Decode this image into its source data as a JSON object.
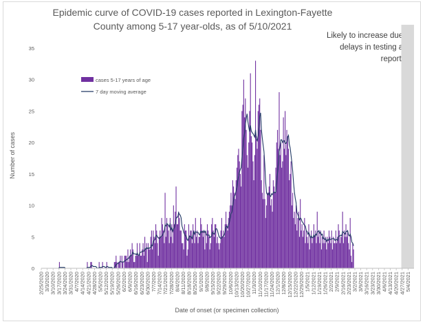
{
  "chart_data": {
    "type": "bar",
    "title": "Epidemic curve of COVID-19 cases reported in Lexington-Fayette County among 5-17 year-olds, as of 5/10/2021",
    "xlabel": "Date of onset (or specimen collection)",
    "ylabel": "Number of cases",
    "ylim": [
      0,
      35
    ],
    "yticks": [
      0,
      5,
      10,
      15,
      20,
      25,
      30,
      35
    ],
    "grid": false,
    "legend_position": "upper-left inside plot",
    "start_date": "2/25/2020",
    "end_date": "5/10/2021",
    "x_tick_labels": [
      "2/25/2020",
      "3/3/2020",
      "3/10/2020",
      "3/17/2020",
      "3/24/2020",
      "3/31/2020",
      "4/7/2020",
      "4/14/2020",
      "4/21/2020",
      "4/28/2020",
      "5/5/2020",
      "5/12/2020",
      "5/19/2020",
      "5/26/2020",
      "6/2/2020",
      "6/9/2020",
      "6/16/2020",
      "6/23/2020",
      "6/30/2020",
      "7/7/2020",
      "7/14/2020",
      "7/21/2020",
      "7/28/2020",
      "8/4/2020",
      "8/11/2020",
      "8/18/2020",
      "8/25/2020",
      "9/1/2020",
      "9/8/2020",
      "9/15/2020",
      "9/22/2020",
      "9/29/2020",
      "10/6/2020",
      "10/13/2020",
      "10/20/2020",
      "10/27/2020",
      "11/3/2020",
      "11/10/2020",
      "11/17/2020",
      "11/24/2020",
      "12/1/2020",
      "12/8/2020",
      "12/15/2020",
      "12/22/2020",
      "12/29/2020",
      "1/5/2021",
      "1/12/2021",
      "1/19/2021",
      "1/26/2021",
      "2/2/2021",
      "2/9/2021",
      "2/16/2021",
      "2/23/2021",
      "3/2/2021",
      "3/9/2021",
      "3/16/2021",
      "3/23/2021",
      "3/30/2021",
      "4/6/2021",
      "4/13/2021",
      "4/20/2021",
      "4/27/2021",
      "5/4/2021"
    ],
    "series": [
      {
        "name": "cases 5-17 years of age",
        "type": "bar",
        "color": "#7030a0",
        "values": [
          0,
          0,
          0,
          0,
          0,
          0,
          0,
          0,
          0,
          0,
          0,
          0,
          0,
          0,
          0,
          0,
          0,
          0,
          0,
          0,
          0,
          1,
          0,
          0,
          0,
          0,
          0,
          0,
          0,
          0,
          0,
          0,
          0,
          0,
          0,
          0,
          0,
          0,
          0,
          0,
          0,
          0,
          0,
          0,
          0,
          0,
          0,
          0,
          0,
          0,
          0,
          0,
          0,
          0,
          1,
          0,
          0,
          0,
          1,
          1,
          0,
          0,
          0,
          0,
          0,
          0,
          0,
          0,
          1,
          0,
          0,
          0,
          1,
          0,
          0,
          0,
          0,
          1,
          0,
          0,
          0,
          0,
          0,
          0,
          0,
          0,
          1,
          1,
          2,
          1,
          0,
          1,
          1,
          2,
          0,
          2,
          1,
          0,
          2,
          2,
          2,
          1,
          3,
          1,
          2,
          3,
          2,
          4,
          3,
          1,
          1,
          2,
          2,
          4,
          2,
          2,
          4,
          2,
          2,
          3,
          4,
          2,
          5,
          3,
          4,
          1,
          4,
          3,
          3,
          5,
          6,
          3,
          6,
          5,
          4,
          7,
          6,
          4,
          2,
          5,
          6,
          5,
          8,
          7,
          6,
          4,
          12,
          5,
          8,
          7,
          6,
          4,
          8,
          5,
          7,
          4,
          10,
          7,
          9,
          13,
          7,
          7,
          9,
          8,
          6,
          6,
          4,
          4,
          3,
          7,
          6,
          6,
          2,
          3,
          7,
          5,
          6,
          6,
          4,
          7,
          6,
          4,
          8,
          5,
          6,
          4,
          5,
          5,
          8,
          7,
          6,
          5,
          6,
          3,
          6,
          4,
          7,
          6,
          5,
          3,
          4,
          7,
          8,
          6,
          5,
          7,
          7,
          4,
          5,
          4,
          3,
          4,
          6,
          8,
          5,
          6,
          5,
          7,
          9,
          7,
          6,
          8,
          9,
          10,
          12,
          10,
          14,
          13,
          12,
          11,
          14,
          16,
          18,
          19,
          17,
          15,
          13,
          25,
          26,
          30,
          24,
          27,
          22,
          18,
          16,
          20,
          25,
          31,
          21,
          20,
          17,
          14,
          18,
          33,
          21,
          19,
          25,
          26,
          27,
          22,
          14,
          12,
          11,
          18,
          11,
          8,
          10,
          12,
          12,
          13,
          15,
          10,
          11,
          9,
          14,
          13,
          12,
          16,
          20,
          22,
          19,
          28,
          18,
          20,
          16,
          17,
          24,
          19,
          25,
          18,
          22,
          21,
          19,
          14,
          15,
          17,
          10,
          12,
          8,
          9,
          7,
          10,
          6,
          8,
          9,
          5,
          11,
          6,
          7,
          5,
          6,
          8,
          4,
          6,
          5,
          4,
          7,
          3,
          5,
          6,
          4,
          5,
          7,
          5,
          6,
          4,
          9,
          5,
          6,
          4,
          6,
          3,
          5,
          4,
          6,
          4,
          5,
          3,
          5,
          4,
          6,
          5,
          4,
          6,
          3,
          5,
          4,
          4,
          6,
          4,
          5,
          7,
          6,
          4,
          5,
          5,
          9,
          4,
          6,
          5,
          7,
          5,
          6,
          4,
          3,
          8,
          2,
          1,
          4,
          3
        ]
      },
      {
        "name": "7 day moving average",
        "type": "line",
        "color": "#203864"
      }
    ],
    "annotation": {
      "text": "Likely to increase due to delays in testing and reporting",
      "from_date": "4/26/2021",
      "to_date": "5/10/2021",
      "color": "#d9d9d9"
    }
  }
}
